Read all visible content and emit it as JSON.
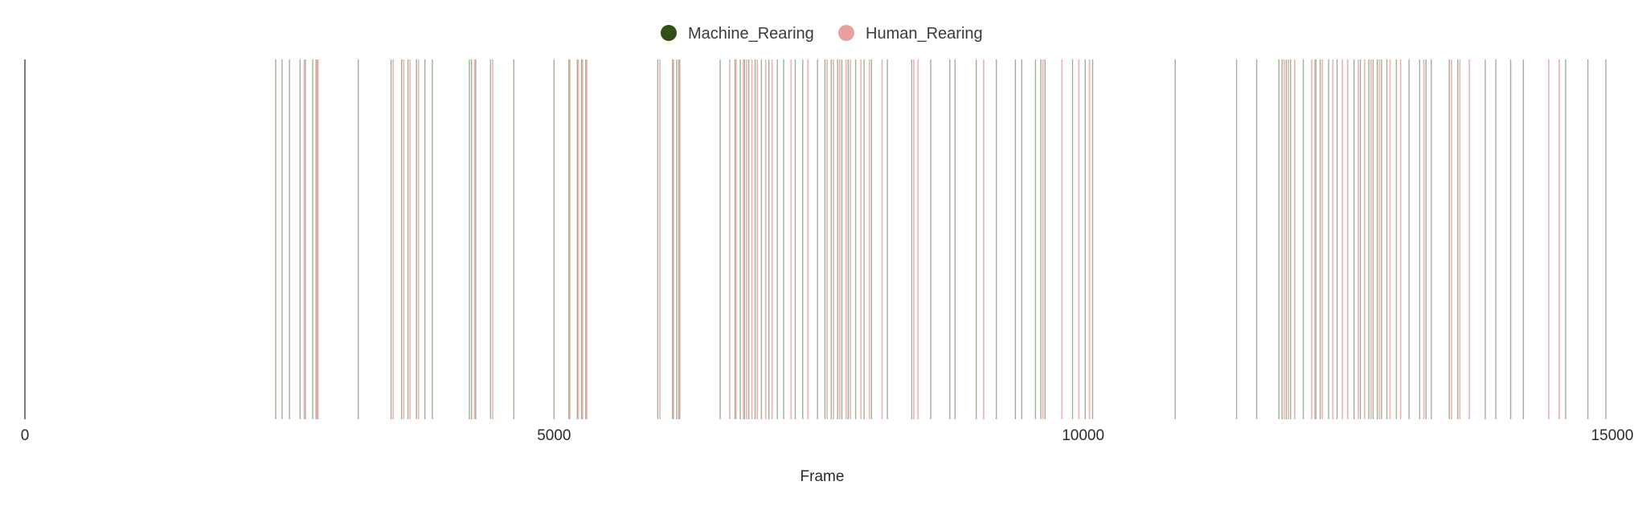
{
  "chart_data": {
    "type": "event-raster",
    "title": "",
    "xlabel": "Frame",
    "ylabel": "",
    "xlim": [
      0,
      15000
    ],
    "xticks": [
      0,
      5000,
      10000,
      15000
    ],
    "grid": false,
    "legend_position": "top-center",
    "series": [
      {
        "name": "Machine_Rearing",
        "color": "#2d5016",
        "events": [
          2370,
          2430,
          2500,
          2600,
          2650,
          2720,
          2760,
          3150,
          3460,
          3560,
          3620,
          3700,
          3780,
          3850,
          4200,
          4220,
          4260,
          4400,
          4620,
          5000,
          5140,
          5220,
          5260,
          5300,
          5980,
          6120,
          6160,
          6180,
          6570,
          6710,
          6760,
          6800,
          6840,
          6900,
          6960,
          7030,
          7110,
          7170,
          7280,
          7350,
          7490,
          7560,
          7620,
          7680,
          7720,
          7780,
          7850,
          7930,
          8000,
          8150,
          8380,
          8560,
          8740,
          8790,
          8990,
          9180,
          9360,
          9420,
          9550,
          9600,
          9640,
          9900,
          10020,
          10090,
          10870,
          11450,
          11640,
          11850,
          11880,
          11920,
          11960,
          12080,
          12200,
          12240,
          12320,
          12400,
          12560,
          12620,
          12700,
          12740,
          12780,
          12820,
          12870,
          12960,
          13080,
          13180,
          13240,
          13290,
          13460,
          13540,
          13800,
          13900,
          14040,
          14160,
          14560,
          14770,
          14940
        ]
      },
      {
        "name": "Human_Rearing",
        "color": "#e8a0a0",
        "events": [
          2640,
          2750,
          2770,
          3480,
          3580,
          3640,
          3720,
          4250,
          4420,
          5150,
          5230,
          5270,
          5310,
          6000,
          6130,
          6190,
          6660,
          6720,
          6790,
          6820,
          6870,
          6920,
          7000,
          7060,
          7240,
          7400,
          7580,
          7640,
          7700,
          7760,
          7800,
          7900,
          7980,
          8100,
          8400,
          8440,
          9060,
          9620,
          9800,
          9960,
          10060,
          11900,
          11940,
          12000,
          12160,
          12190,
          12260,
          12360,
          12450,
          12500,
          12600,
          12660,
          12720,
          12800,
          12900,
          13000,
          13220,
          13480,
          13560,
          13650,
          14400,
          14500
        ]
      }
    ]
  }
}
